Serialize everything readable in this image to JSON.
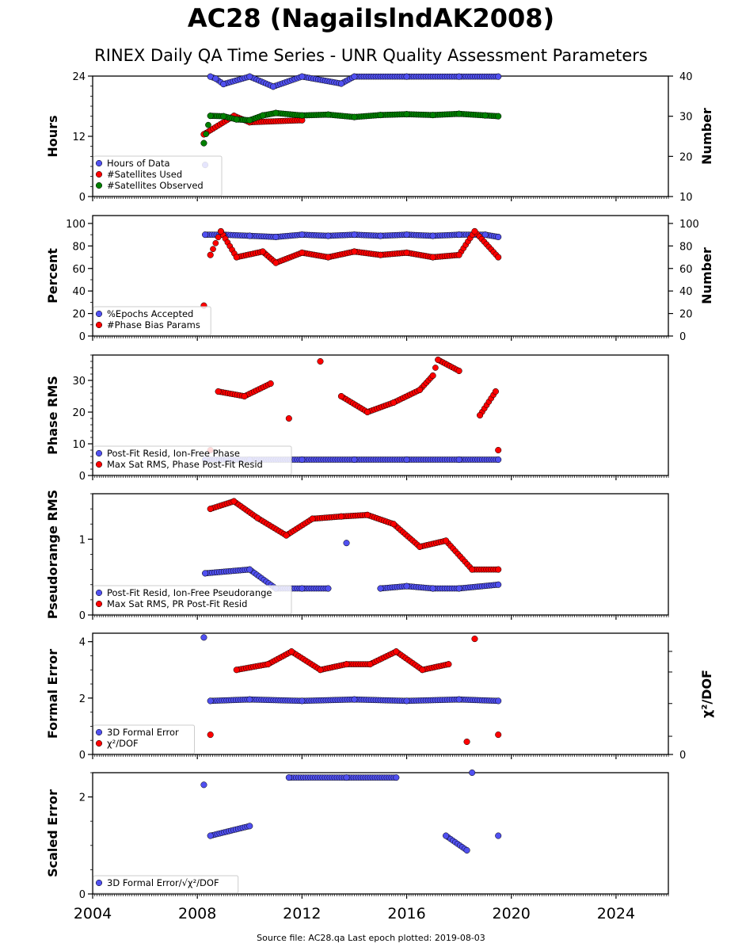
{
  "title": "AC28 (NagaiIslndAK2008)",
  "subtitle": "RINEX Daily QA Time Series - UNR Quality Assessment Parameters",
  "footer": "Source file: AC28.qa Last epoch plotted: 2019-08-03",
  "colors": {
    "blue": "#5050f0",
    "red": "#ff0000",
    "green": "#008000",
    "edge": "#000000"
  },
  "chart_data": [
    {
      "type": "scatter",
      "ylabel": "Hours",
      "y2label": "Number",
      "xlim": [
        2004,
        2026
      ],
      "ylim": [
        0,
        24
      ],
      "y2lim": [
        10,
        40
      ],
      "yticks": [
        "0",
        "12",
        "24"
      ],
      "y2ticks": [
        "10",
        "20",
        "30",
        "40"
      ],
      "legend_placement": "lower-left",
      "series": [
        {
          "name": "Hours of Data",
          "color": "#5050f0",
          "axis": "left",
          "points": [
            [
              2008.3,
              6.3
            ],
            [
              2008.5,
              23.9
            ],
            [
              2008.7,
              23.5
            ],
            [
              2009.0,
              22.4
            ],
            [
              2010.0,
              23.9
            ],
            [
              2010.9,
              21.9
            ],
            [
              2012.0,
              23.9
            ],
            [
              2013.5,
              22.5
            ],
            [
              2014.0,
              23.9
            ],
            [
              2016.0,
              23.9
            ],
            [
              2018.0,
              23.9
            ],
            [
              2019.5,
              23.9
            ]
          ]
        },
        {
          "name": "#Satellites Used",
          "color": "#ff0000",
          "axis": "right",
          "points": [
            [
              2008.25,
              25.5
            ],
            [
              2009.4,
              30.1
            ],
            [
              2010.0,
              28.5
            ],
            [
              2012.0,
              29.0
            ]
          ]
        },
        {
          "name": "#Satellites Observed",
          "color": "#008000",
          "axis": "right",
          "points": [
            [
              2008.25,
              23.3
            ],
            [
              2008.5,
              30.1
            ],
            [
              2009.0,
              30.0
            ],
            [
              2009.5,
              29.2
            ],
            [
              2010.0,
              29.0
            ],
            [
              2010.5,
              30.2
            ],
            [
              2011.0,
              30.8
            ],
            [
              2012.0,
              30.2
            ],
            [
              2013.0,
              30.4
            ],
            [
              2014.0,
              29.8
            ],
            [
              2015.0,
              30.3
            ],
            [
              2016.0,
              30.5
            ],
            [
              2017.0,
              30.3
            ],
            [
              2018.0,
              30.6
            ],
            [
              2019.0,
              30.2
            ],
            [
              2019.5,
              30.0
            ]
          ]
        }
      ]
    },
    {
      "type": "scatter",
      "ylabel": "Percent",
      "y2label": "Number",
      "xlim": [
        2004,
        2026
      ],
      "ylim": [
        0,
        107
      ],
      "y2lim": [
        0,
        107
      ],
      "yticks": [
        "0",
        "20",
        "40",
        "60",
        "80",
        "100"
      ],
      "y2ticks": [
        "0",
        "20",
        "40",
        "60",
        "80",
        "100"
      ],
      "legend_placement": "lower-left",
      "series": [
        {
          "name": "%Epochs Accepted",
          "color": "#5050f0",
          "axis": "left",
          "points": [
            [
              2008.3,
              90
            ],
            [
              2009.0,
              90
            ],
            [
              2010.0,
              89
            ],
            [
              2011.0,
              88
            ],
            [
              2012.0,
              90
            ],
            [
              2013.0,
              89
            ],
            [
              2014.0,
              90
            ],
            [
              2015.0,
              89
            ],
            [
              2016.0,
              90
            ],
            [
              2017.0,
              89
            ],
            [
              2018.0,
              90
            ],
            [
              2019.0,
              90
            ],
            [
              2019.5,
              88
            ]
          ]
        },
        {
          "name": "#Phase Bias Params",
          "color": "#ff0000",
          "axis": "right",
          "points": [
            [
              2008.25,
              27
            ],
            [
              2008.5,
              72
            ],
            [
              2008.9,
              93
            ],
            [
              2009.5,
              70
            ],
            [
              2010.5,
              75
            ],
            [
              2011.0,
              65
            ],
            [
              2012.0,
              74
            ],
            [
              2013.0,
              70
            ],
            [
              2014.0,
              75
            ],
            [
              2015.0,
              72
            ],
            [
              2016.0,
              74
            ],
            [
              2017.0,
              70
            ],
            [
              2018.0,
              72
            ],
            [
              2018.6,
              93
            ],
            [
              2019.5,
              70
            ]
          ]
        }
      ]
    },
    {
      "type": "scatter",
      "ylabel": "Phase RMS",
      "xlim": [
        2004,
        2026
      ],
      "ylim": [
        0,
        38
      ],
      "yticks": [
        "0",
        "10",
        "20",
        "30"
      ],
      "legend_placement": "lower-left",
      "series": [
        {
          "name": "Post-Fit Resid, Ion-Free Phase",
          "color": "#5050f0",
          "axis": "left",
          "points": [
            [
              2008.3,
              5
            ],
            [
              2010.0,
              5
            ],
            [
              2012.0,
              5
            ],
            [
              2014.0,
              5
            ],
            [
              2016.0,
              5
            ],
            [
              2018.0,
              5
            ],
            [
              2019.5,
              5
            ]
          ]
        },
        {
          "name": "Max Sat RMS, Phase Post-Fit Resid",
          "color": "#ff0000",
          "axis": "left",
          "points": [
            [
              2008.5,
              8
            ],
            [
              2008.8,
              26.5
            ],
            [
              2009.8,
              25
            ],
            [
              2010.8,
              29
            ],
            [
              2011.5,
              18
            ],
            [
              2012.7,
              36
            ],
            [
              2013.5,
              25
            ],
            [
              2014.5,
              20
            ],
            [
              2015.5,
              23
            ],
            [
              2016.5,
              27
            ],
            [
              2017.0,
              31.5
            ],
            [
              2017.2,
              36.5
            ],
            [
              2018.0,
              33
            ],
            [
              2018.8,
              19
            ],
            [
              2019.4,
              26.5
            ],
            [
              2019.5,
              8
            ]
          ]
        }
      ]
    },
    {
      "type": "scatter",
      "ylabel": "Pseudorange RMS",
      "xlim": [
        2004,
        2026
      ],
      "ylim": [
        0,
        1.6
      ],
      "yticks": [
        "0",
        "1"
      ],
      "legend_placement": "lower-left",
      "series": [
        {
          "name": "Post-Fit Resid, Ion-Free Pseudorange",
          "color": "#5050f0",
          "axis": "left",
          "points": [
            [
              2008.3,
              0.55
            ],
            [
              2010.0,
              0.6
            ],
            [
              2011.0,
              0.35
            ],
            [
              2012.0,
              0.35
            ],
            [
              2013.0,
              0.35
            ],
            [
              2013.7,
              0.95
            ],
            [
              2015.0,
              0.35
            ],
            [
              2016.0,
              0.38
            ],
            [
              2017.0,
              0.35
            ],
            [
              2018.0,
              0.35
            ],
            [
              2019.5,
              0.4
            ]
          ]
        },
        {
          "name": "Max Sat RMS, PR Post-Fit Resid",
          "color": "#ff0000",
          "axis": "left",
          "points": [
            [
              2008.5,
              1.4
            ],
            [
              2009.4,
              1.5
            ],
            [
              2010.3,
              1.28
            ],
            [
              2011.4,
              1.05
            ],
            [
              2012.4,
              1.27
            ],
            [
              2013.5,
              1.3
            ],
            [
              2014.5,
              1.32
            ],
            [
              2015.5,
              1.2
            ],
            [
              2016.5,
              0.9
            ],
            [
              2017.5,
              0.98
            ],
            [
              2018.5,
              0.6
            ],
            [
              2019.5,
              0.6
            ]
          ]
        }
      ]
    },
    {
      "type": "scatter",
      "ylabel": "Formal Error",
      "y2label": "χ²/DOF",
      "xlim": [
        2004,
        2026
      ],
      "ylim": [
        0,
        4.3
      ],
      "yticks": [
        "0",
        "2",
        "4"
      ],
      "y2ticks": [
        "0"
      ],
      "legend_placement": "lower-left",
      "series": [
        {
          "name": "3D Formal Error",
          "color": "#5050f0",
          "axis": "left",
          "points": [
            [
              2008.25,
              4.15
            ],
            [
              2008.5,
              1.9
            ],
            [
              2010.0,
              1.95
            ],
            [
              2012.0,
              1.9
            ],
            [
              2014.0,
              1.95
            ],
            [
              2016.0,
              1.9
            ],
            [
              2018.0,
              1.95
            ],
            [
              2019.5,
              1.9
            ]
          ]
        },
        {
          "name": "χ²/DOF",
          "color": "#ff0000",
          "axis": "left",
          "points": [
            [
              2008.5,
              0.7
            ],
            [
              2009.5,
              3.0
            ],
            [
              2010.7,
              3.2
            ],
            [
              2011.6,
              3.65
            ],
            [
              2012.7,
              3.0
            ],
            [
              2013.7,
              3.2
            ],
            [
              2014.6,
              3.2
            ],
            [
              2015.6,
              3.65
            ],
            [
              2016.6,
              3.0
            ],
            [
              2017.6,
              3.2
            ],
            [
              2018.3,
              0.45
            ],
            [
              2018.6,
              4.1
            ],
            [
              2019.5,
              0.7
            ]
          ]
        }
      ]
    },
    {
      "type": "scatter",
      "ylabel": "Scaled Error",
      "xlim": [
        2004,
        2026
      ],
      "ylim": [
        0,
        2.5
      ],
      "yticks": [
        "0",
        "2"
      ],
      "xticks": [
        "2004",
        "2008",
        "2012",
        "2016",
        "2020",
        "2024"
      ],
      "legend_placement": "lower-left",
      "series": [
        {
          "name": "3D Formal Error/√χ²/DOF",
          "color": "#5050f0",
          "axis": "left",
          "points": [
            [
              2008.25,
              2.25
            ],
            [
              2008.5,
              1.2
            ],
            [
              2010.0,
              1.4
            ],
            [
              2011.5,
              2.4
            ],
            [
              2013.7,
              2.4
            ],
            [
              2015.6,
              2.4
            ],
            [
              2017.5,
              1.2
            ],
            [
              2018.3,
              0.9
            ],
            [
              2018.5,
              2.5
            ],
            [
              2019.5,
              1.2
            ]
          ]
        }
      ]
    }
  ]
}
